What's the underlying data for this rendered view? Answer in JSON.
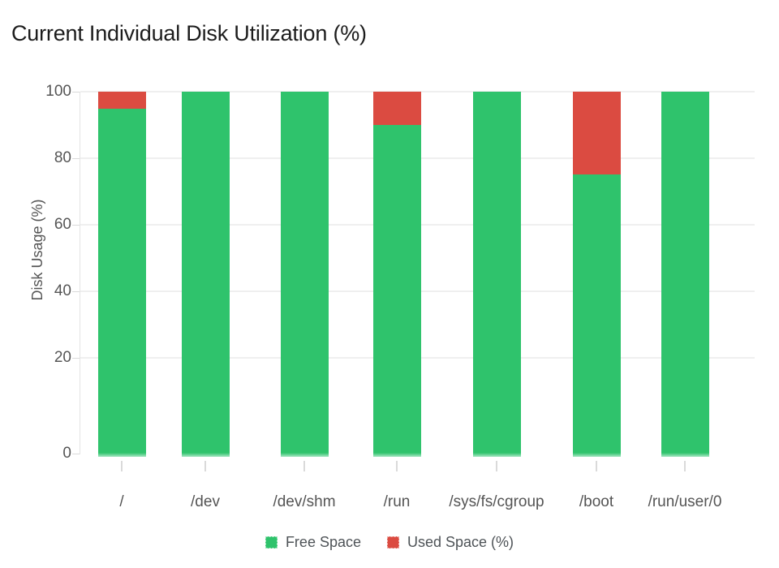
{
  "chart_data": {
    "type": "bar",
    "stacked": true,
    "title": "Current Individual Disk Utilization (%)",
    "categories": [
      "/",
      "/dev",
      "/dev/shm",
      "/run",
      "/sys/fs/cgroup",
      "/boot",
      "/run/user/0"
    ],
    "series": [
      {
        "name": "Free Space",
        "color": "#2fc36c",
        "values": [
          95,
          100,
          100,
          90,
          100,
          75,
          100
        ]
      },
      {
        "name": "Used Space (%)",
        "color": "#db4b41",
        "values": [
          5,
          0,
          0,
          10,
          0,
          25,
          0
        ]
      }
    ],
    "xlabel": "",
    "ylabel": "Disk Usage (%)",
    "ylim": [
      0,
      100
    ],
    "yticks": [
      100,
      80,
      60,
      40,
      20,
      0
    ],
    "grid": true,
    "legend_position": "bottom",
    "free_space_fade_color": "#a9e7c4"
  }
}
